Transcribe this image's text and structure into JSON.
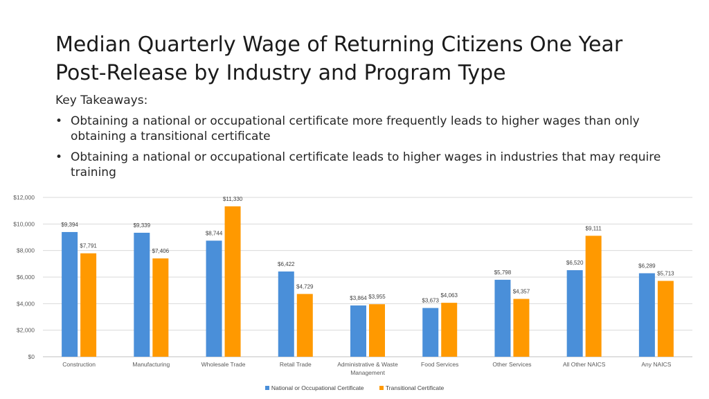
{
  "slide": {
    "title": "Median Quarterly Wage of Returning Citizens One Year Post-Release by Industry and Program Type",
    "takeaways_header": "Key Takeaways:",
    "bullets": [
      "Obtaining a national or occupational certificate more frequently leads to higher wages than only obtaining a transitional certificate",
      "Obtaining a national or occupational certificate leads to higher wages in industries that may require training"
    ]
  },
  "chart_data": {
    "type": "bar",
    "categories": [
      "Construction",
      "Manufacturing",
      "Wholesale Trade",
      "Retail Trade",
      "Administrative & Waste Management",
      "Food Services",
      "Other Services",
      "All Other NAICS",
      "Any NAICS"
    ],
    "series": [
      {
        "name": "National or Occupational Certificate",
        "color": "#4a8fd9",
        "values": [
          9394,
          9339,
          8744,
          6422,
          3864,
          3673,
          5798,
          6520,
          6289
        ],
        "labels": [
          "$9,394",
          "$9,339",
          "$8,744",
          "$6,422",
          "$3,864",
          "$3,673",
          "$5,798",
          "$6,520",
          "$6,289"
        ]
      },
      {
        "name": "Transitional Certificate",
        "color": "#ff9900",
        "values": [
          7791,
          7406,
          11330,
          4729,
          3955,
          4063,
          4357,
          9111,
          5713
        ],
        "labels": [
          "$7,791",
          "$7,406",
          "$11,330",
          "$4,729",
          "$3,955",
          "$4,063",
          "$4,357",
          "$9,111",
          "$5,713"
        ]
      }
    ],
    "ylim": [
      0,
      12000
    ],
    "yticks": [
      0,
      2000,
      4000,
      6000,
      8000,
      10000,
      12000
    ],
    "ytick_labels": [
      "$0",
      "$2,000",
      "$4,000",
      "$6,000",
      "$8,000",
      "$10,000",
      "$12,000"
    ],
    "grid": true,
    "legend_position": "bottom"
  }
}
